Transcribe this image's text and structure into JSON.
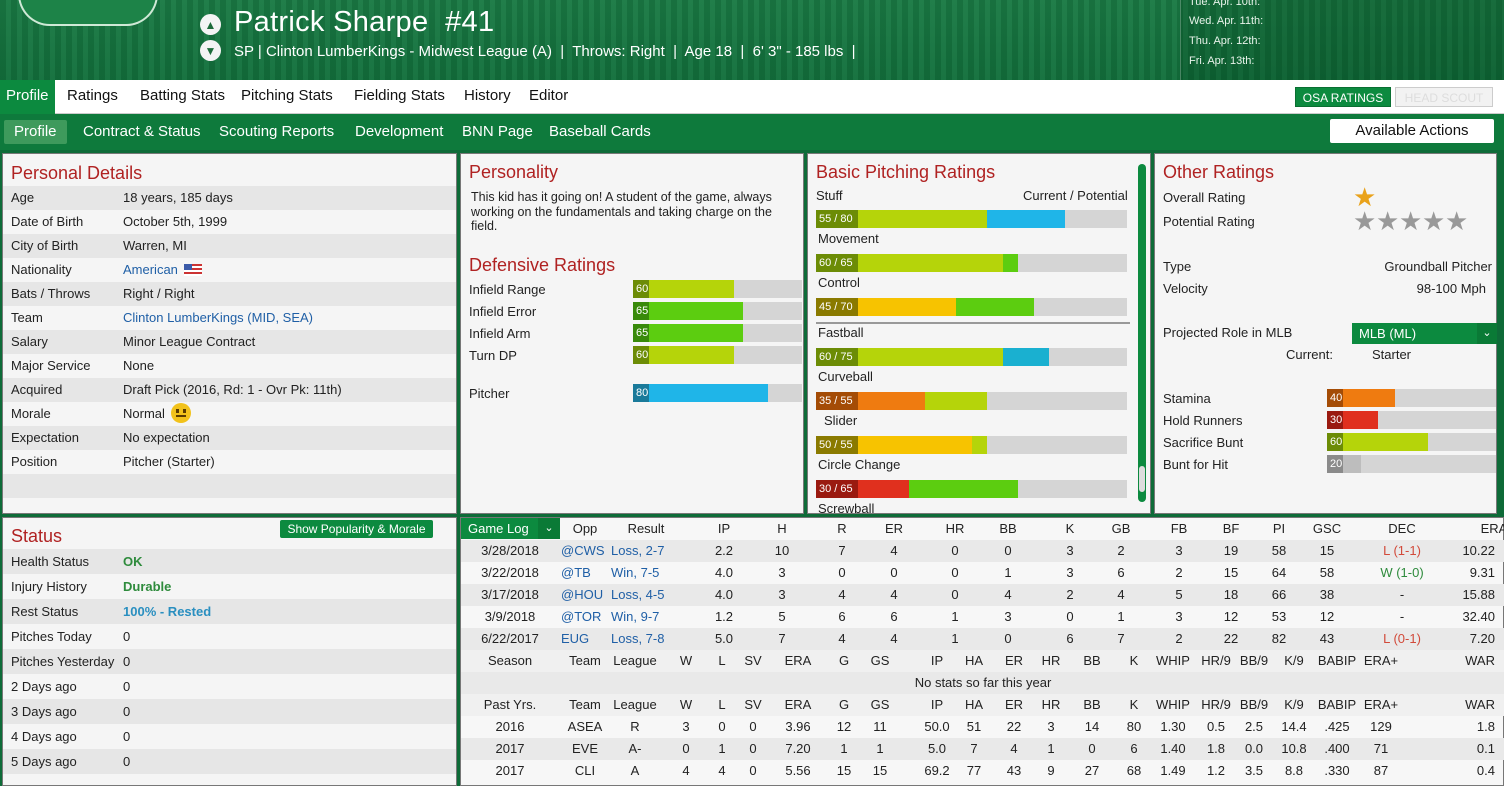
{
  "header": {
    "name": "Patrick Sharpe",
    "number": "#41",
    "info": "SP | Clinton LumberKings - Midwest League (A)  |  Throws: Right  |  Age 18  |  6' 3\" - 185 lbs  |",
    "schedule": [
      "Tue. Apr. 10th:",
      "Wed. Apr. 11th:",
      "Thu. Apr. 12th:",
      "Fri. Apr. 13th:"
    ]
  },
  "tabs1": [
    "Profile",
    "Ratings",
    "Batting Stats",
    "Pitching Stats",
    "Fielding Stats",
    "History",
    "Editor"
  ],
  "osa": "OSA RATINGS",
  "headscout": "HEAD SCOUT",
  "tabs2": [
    "Profile",
    "Contract & Status",
    "Scouting Reports",
    "Development",
    "BNN Page",
    "Baseball Cards"
  ],
  "actions": "Available Actions",
  "personal": {
    "title": "Personal Details",
    "rows": [
      [
        "Age",
        "18 years, 185 days"
      ],
      [
        "Date of Birth",
        "October 5th, 1999"
      ],
      [
        "City of Birth",
        "Warren, MI"
      ],
      [
        "Nationality",
        "American"
      ],
      [
        "Bats / Throws",
        "Right / Right"
      ],
      [
        "Team",
        "Clinton LumberKings (MID, SEA)"
      ],
      [
        "Salary",
        "Minor League Contract"
      ],
      [
        "Major Service",
        "None"
      ],
      [
        "Acquired",
        "Draft Pick (2016, Rd: 1 - Ovr Pk: 11th)"
      ],
      [
        "Morale",
        "Normal"
      ],
      [
        "Expectation",
        "No expectation"
      ],
      [
        "Position",
        "Pitcher (Starter)"
      ]
    ]
  },
  "personality": {
    "title": "Personality",
    "text": "This kid has it going on! A student of the game, always working on the fundamentals and taking charge on the field."
  },
  "defensive": {
    "title": "Defensive Ratings",
    "rows": [
      {
        "name": "Infield Range",
        "val": "60",
        "pct": 60
      },
      {
        "name": "Infield Error",
        "val": "65",
        "pct": 65
      },
      {
        "name": "Infield Arm",
        "val": "65",
        "pct": 65
      },
      {
        "name": "Turn DP",
        "val": "60",
        "pct": 60
      }
    ],
    "pitcher": {
      "name": "Pitcher",
      "val": "80",
      "pct": 80
    }
  },
  "pitching": {
    "title": "Basic Pitching Ratings",
    "hdr_left": "Stuff",
    "hdr_right": "Current / Potential",
    "rows": [
      {
        "name": "Movement",
        "val": "60 / 65",
        "cur": 60,
        "pot": 65
      },
      {
        "name": "Control",
        "val": "45 / 70",
        "cur": 45,
        "pot": 70
      },
      {
        "name": "Fastball",
        "val": "60 / 75",
        "cur": 60,
        "pot": 75
      },
      {
        "name": "Curveball",
        "val": "35 / 55",
        "cur": 35,
        "pot": 55
      },
      {
        "name": "Slider",
        "val": "50 / 55",
        "cur": 50,
        "pot": 55
      },
      {
        "name": "Circle Change",
        "val": "30 / 65",
        "cur": 30,
        "pot": 65
      },
      {
        "name": "Screwball",
        "val": "",
        "cur": 0,
        "pot": 0
      }
    ],
    "stuff": {
      "val": "55 / 80",
      "cur": 55,
      "pot": 80
    }
  },
  "other": {
    "title": "Other Ratings",
    "overall": "Overall Rating",
    "potential": "Potential Rating",
    "overall_stars": 0.5,
    "potential_stars": 5,
    "type_k": "Type",
    "type_v": "Groundball Pitcher",
    "vel_k": "Velocity",
    "vel_v": "98-100 Mph",
    "role_k": "Projected Role in MLB",
    "role_v": "MLB (ML)",
    "current_k": "Current:",
    "current_v": "Starter",
    "bars": [
      {
        "name": "Stamina",
        "val": "40",
        "pct": 40
      },
      {
        "name": "Hold Runners",
        "val": "30",
        "pct": 30
      },
      {
        "name": "Sacrifice Bunt",
        "val": "60",
        "pct": 60
      },
      {
        "name": "Bunt for Hit",
        "val": "20",
        "pct": 20
      }
    ]
  },
  "status": {
    "title": "Status",
    "button": "Show Popularity & Morale",
    "rows": [
      [
        "Health Status",
        "OK"
      ],
      [
        "Injury History",
        "Durable"
      ],
      [
        "Rest Status",
        "100% - Rested"
      ],
      [
        "Pitches Today",
        "0"
      ],
      [
        "Pitches Yesterday",
        "0"
      ],
      [
        "2 Days ago",
        "0"
      ],
      [
        "3 Days ago",
        "0"
      ],
      [
        "4 Days ago",
        "0"
      ],
      [
        "5 Days ago",
        "0"
      ]
    ]
  },
  "gamelog": {
    "select": "Game Log",
    "headers": [
      "Opp",
      "Result",
      "IP",
      "H",
      "R",
      "ER",
      "HR",
      "BB",
      "K",
      "GB",
      "FB",
      "BF",
      "PI",
      "GSC",
      "DEC",
      "ERA"
    ],
    "rows": [
      [
        "3/28/2018",
        "@CWS",
        "Loss, 2-7",
        "2.2",
        "10",
        "7",
        "4",
        "0",
        "0",
        "3",
        "2",
        "3",
        "19",
        "58",
        "15",
        "L (1-1)",
        "10.22"
      ],
      [
        "3/22/2018",
        "@TB",
        "Win, 7-5",
        "4.0",
        "3",
        "0",
        "0",
        "0",
        "1",
        "3",
        "6",
        "2",
        "15",
        "64",
        "58",
        "W (1-0)",
        "9.31"
      ],
      [
        "3/17/2018",
        "@HOU",
        "Loss, 4-5",
        "4.0",
        "3",
        "4",
        "4",
        "0",
        "4",
        "2",
        "4",
        "5",
        "18",
        "66",
        "38",
        "-",
        "15.88"
      ],
      [
        "3/9/2018",
        "@TOR",
        "Win, 9-7",
        "1.2",
        "5",
        "6",
        "6",
        "1",
        "3",
        "0",
        "1",
        "3",
        "12",
        "53",
        "12",
        "-",
        "32.40"
      ],
      [
        "6/22/2017",
        "EUG",
        "Loss, 7-8",
        "5.0",
        "7",
        "4",
        "4",
        "1",
        "0",
        "6",
        "7",
        "2",
        "22",
        "82",
        "43",
        "L (0-1)",
        "7.20"
      ]
    ]
  },
  "season": {
    "headers": [
      "Season",
      "Team",
      "League",
      "W",
      "L",
      "SV",
      "ERA",
      "G",
      "GS",
      "IP",
      "HA",
      "ER",
      "HR",
      "BB",
      "K",
      "WHIP",
      "HR/9",
      "BB/9",
      "K/9",
      "BABIP",
      "ERA+",
      "WAR"
    ],
    "empty": "No stats so far this year"
  },
  "past": {
    "headers": [
      "Past Yrs.",
      "Team",
      "League",
      "W",
      "L",
      "SV",
      "ERA",
      "G",
      "GS",
      "IP",
      "HA",
      "ER",
      "HR",
      "BB",
      "K",
      "WHIP",
      "HR/9",
      "BB/9",
      "K/9",
      "BABIP",
      "ERA+",
      "WAR"
    ],
    "rows": [
      [
        "2016",
        "ASEA",
        "R",
        "3",
        "0",
        "0",
        "3.96",
        "12",
        "11",
        "50.0",
        "51",
        "22",
        "3",
        "14",
        "80",
        "1.30",
        "0.5",
        "2.5",
        "14.4",
        ".425",
        "129",
        "1.8"
      ],
      [
        "2017",
        "EVE",
        "A-",
        "0",
        "1",
        "0",
        "7.20",
        "1",
        "1",
        "5.0",
        "7",
        "4",
        "1",
        "0",
        "6",
        "1.40",
        "1.8",
        "0.0",
        "10.8",
        ".400",
        "71",
        "0.1"
      ],
      [
        "2017",
        "CLI",
        "A",
        "4",
        "4",
        "0",
        "5.56",
        "15",
        "15",
        "69.2",
        "77",
        "43",
        "9",
        "27",
        "68",
        "1.49",
        "1.2",
        "3.5",
        "8.8",
        ".330",
        "87",
        "0.4"
      ]
    ]
  }
}
